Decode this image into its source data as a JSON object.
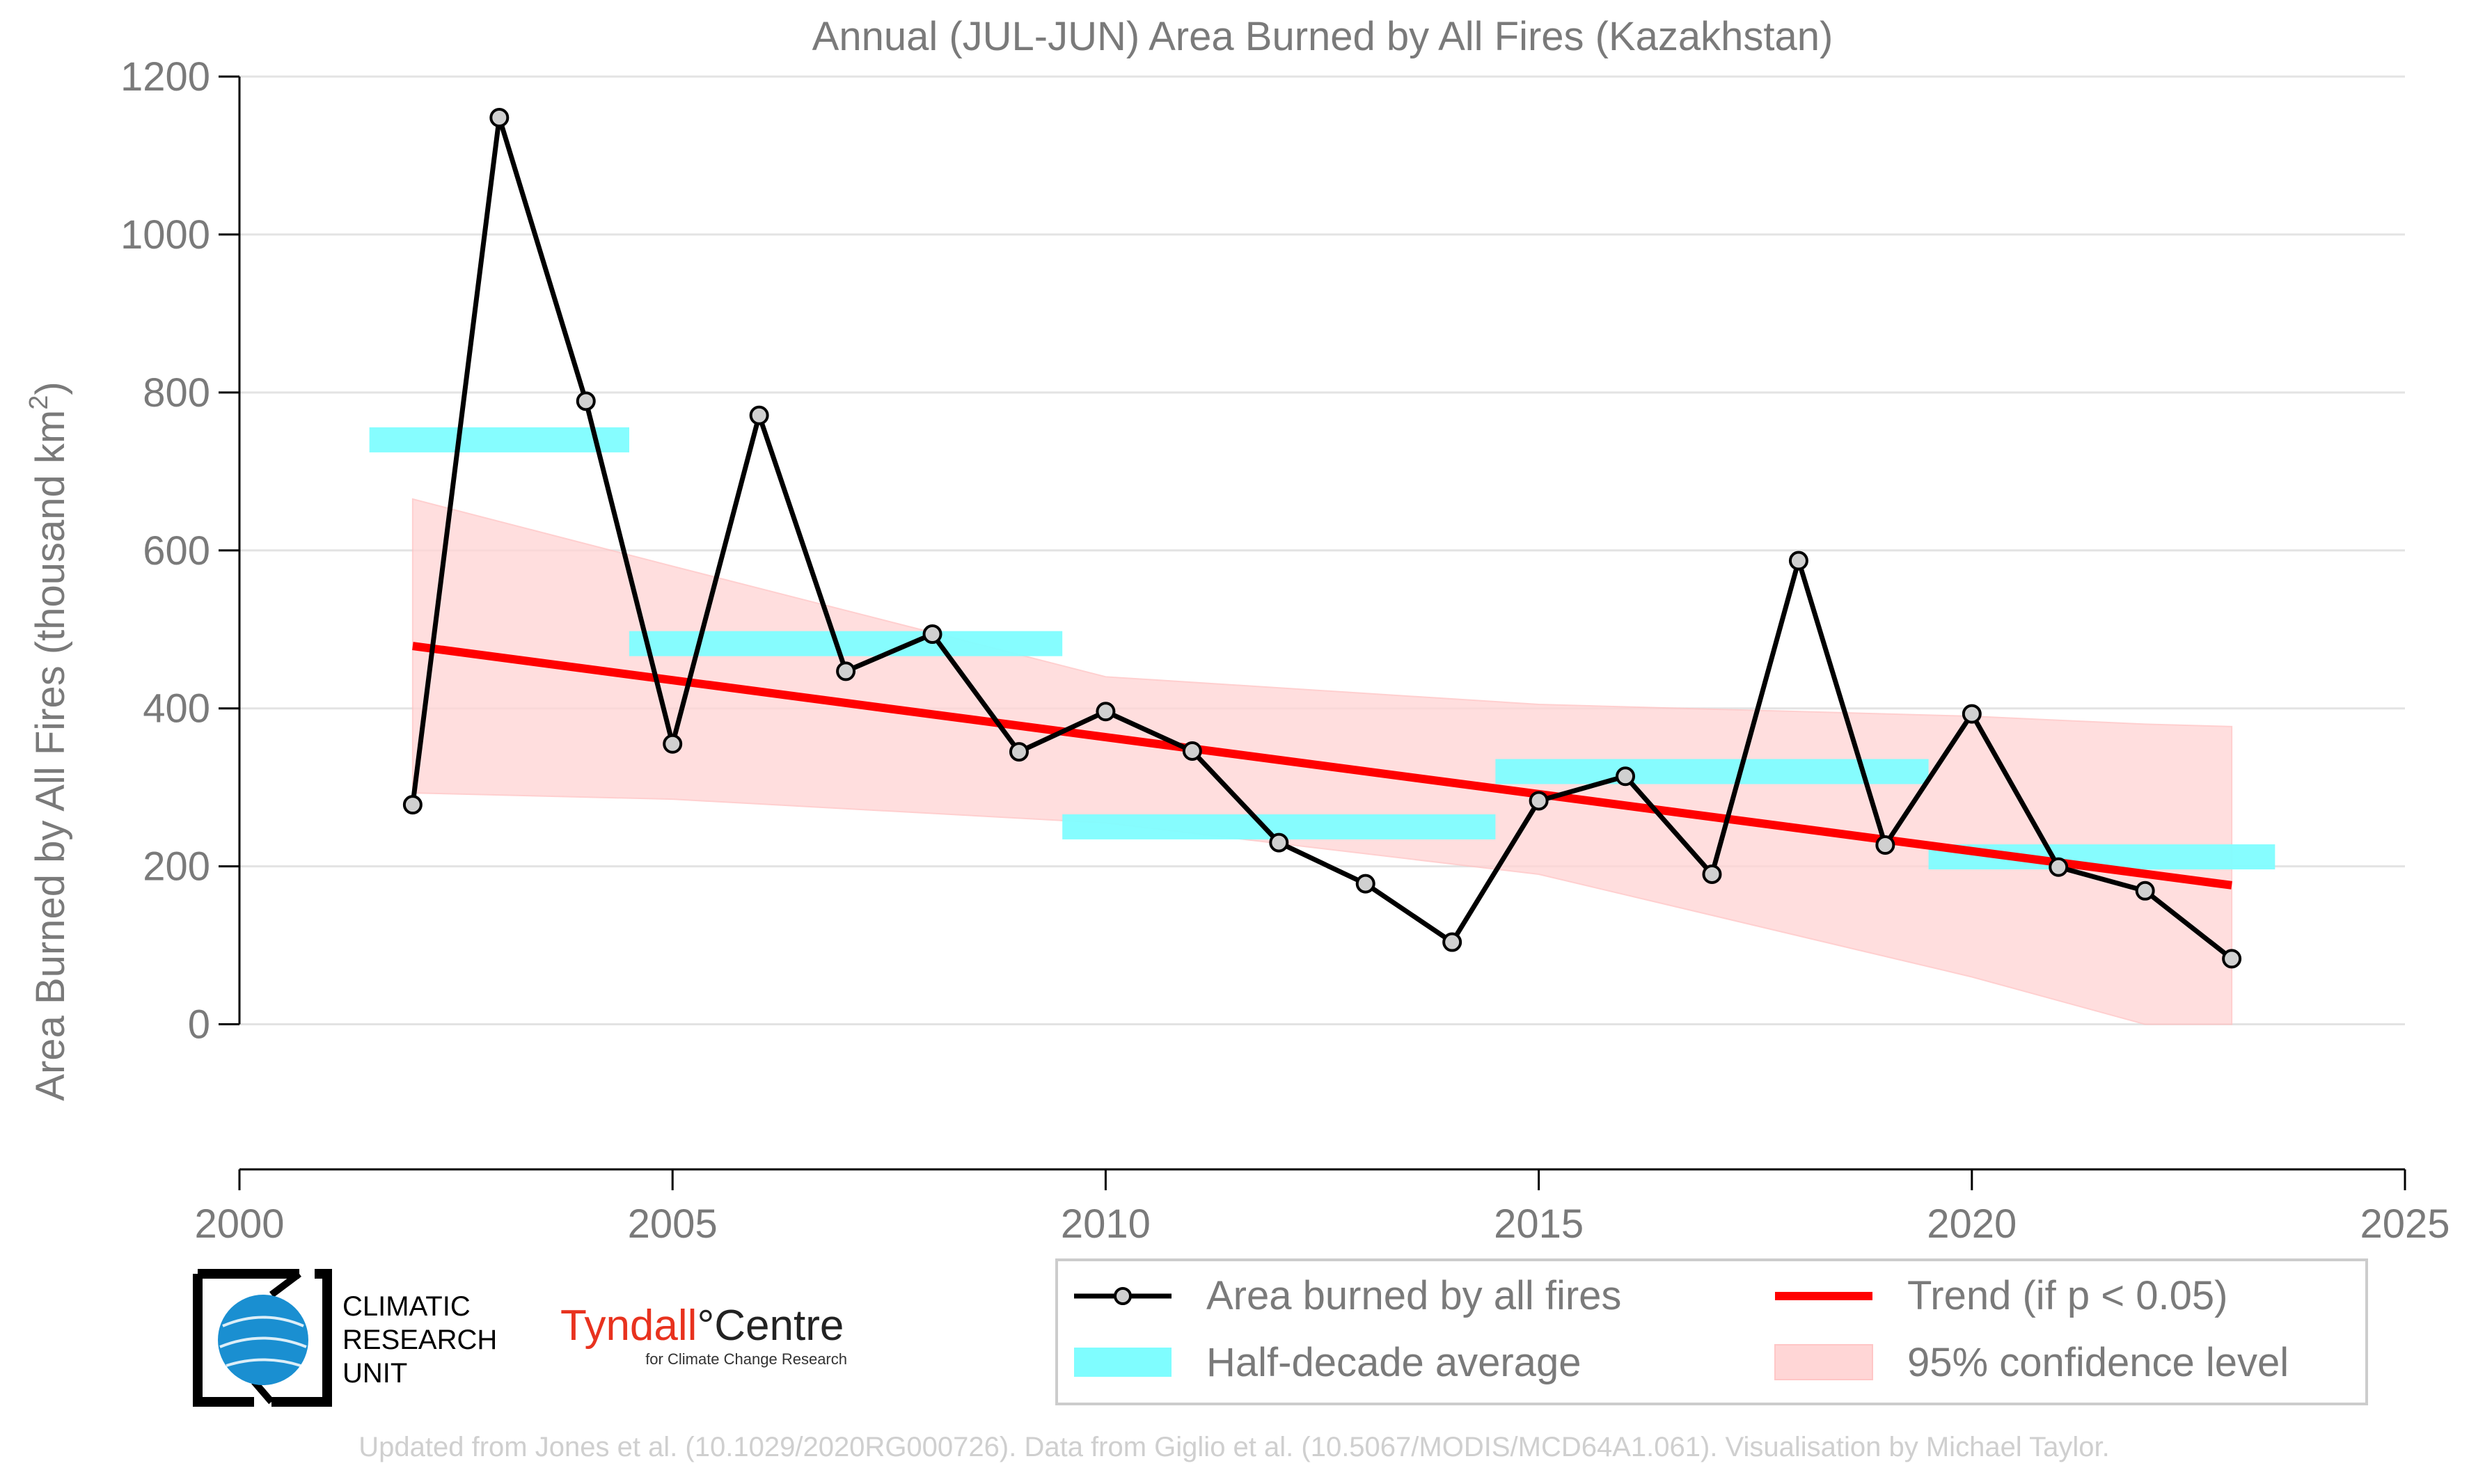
{
  "chart_data": {
    "type": "line",
    "title": "Annual (JUL-JUN) Area Burned by All Fires (Kazakhstan)",
    "ylabel_main": "Area Burned by All Fires (thousand km",
    "ylabel_sup": "2",
    "ylabel_end": ")",
    "xlim": [
      2000,
      2025
    ],
    "ylim": [
      -85,
      1200
    ],
    "xticks": [
      2000,
      2005,
      2010,
      2015,
      2020,
      2025
    ],
    "yticks": [
      0,
      200,
      400,
      600,
      800,
      1000,
      1200
    ],
    "grid": "horizontal",
    "series": [
      {
        "name": "Area burned by all fires",
        "x": [
          2002,
          2003,
          2004,
          2005,
          2006,
          2007,
          2008,
          2009,
          2010,
          2011,
          2012,
          2013,
          2014,
          2015,
          2016,
          2017,
          2018,
          2019,
          2020,
          2021,
          2022,
          2023
        ],
        "y": [
          278,
          1148,
          789,
          355,
          771,
          447,
          494,
          345,
          396,
          346,
          230,
          178,
          104,
          283,
          314,
          190,
          587,
          227,
          393,
          199,
          169,
          83
        ]
      }
    ],
    "half_decade_average": {
      "name": "Half-decade average",
      "segments": [
        {
          "x0": 2001.5,
          "x1": 2004.5,
          "y": 740
        },
        {
          "x0": 2004.5,
          "x1": 2009.5,
          "y": 482
        },
        {
          "x0": 2009.5,
          "x1": 2014.5,
          "y": 250
        },
        {
          "x0": 2014.5,
          "x1": 2019.5,
          "y": 320
        },
        {
          "x0": 2019.5,
          "x1": 2023.5,
          "y": 212
        }
      ]
    },
    "trend": {
      "name": "Trend (if p < 0.05)",
      "x": [
        2002,
        2023
      ],
      "y": [
        479,
        176
      ]
    },
    "confidence": {
      "name": "95% confidence level",
      "x": [
        2002,
        2005,
        2010,
        2015,
        2020,
        2022,
        2023
      ],
      "upper": [
        665,
        580,
        440,
        405,
        390,
        380,
        377
      ],
      "lower": [
        293,
        285,
        255,
        190,
        60,
        0,
        0
      ]
    },
    "legend_position": "bottom-right"
  },
  "colors": {
    "line": "#000000",
    "marker_fill": "#d0d0d0",
    "half_decade": "#7ffdff",
    "trend": "#ff0000",
    "confidence": "#ffd6d6",
    "text": "#7a7a7a",
    "credit": "#cfcfcf"
  },
  "logos": {
    "cru_line1": "CLIMATIC",
    "cru_line2": "RESEARCH",
    "cru_line3": "UNIT",
    "tyndall_name": "Tyndall",
    "tyndall_centre": "°Centre",
    "tyndall_sub": "for Climate Change Research"
  },
  "credit": "Updated from Jones et al. (10.1029/2020RG000726). Data from Giglio et al. (10.5067/MODIS/MCD64A1.061). Visualisation by Michael Taylor."
}
